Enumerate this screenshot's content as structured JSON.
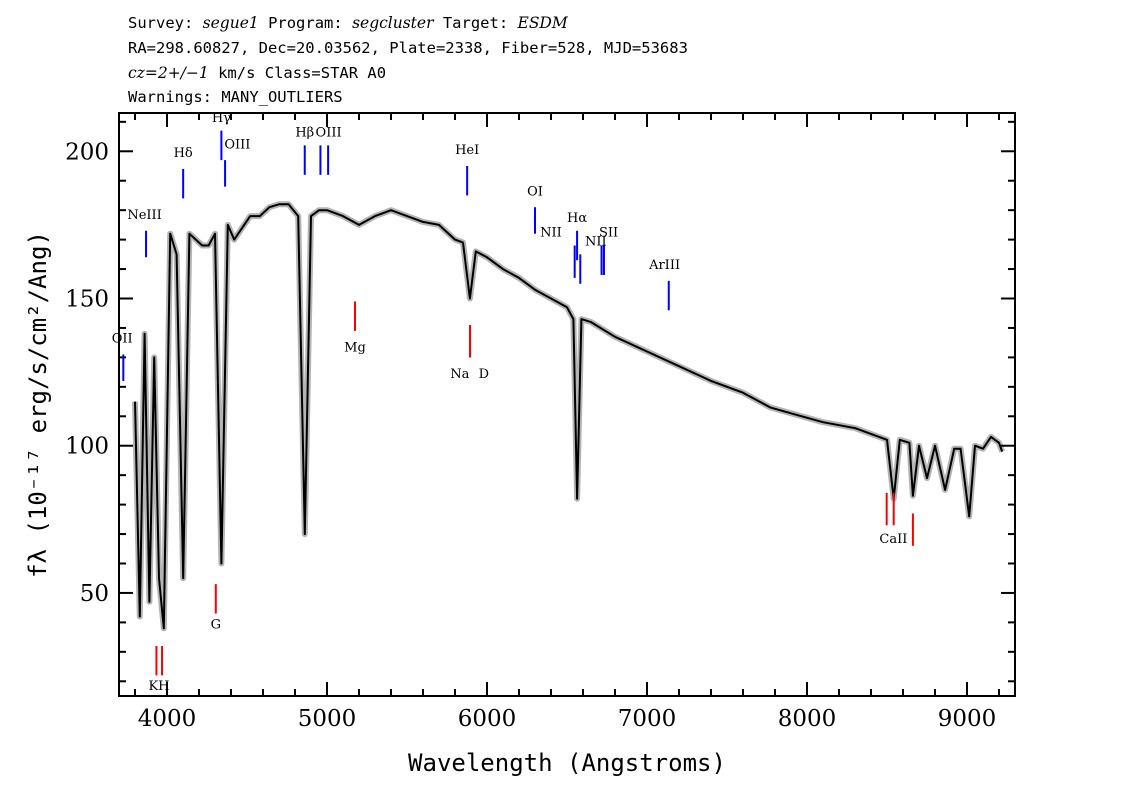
{
  "header": {
    "line1": [
      {
        "t": "Survey: ",
        "i": false
      },
      {
        "t": "segue1",
        "i": true
      },
      {
        "t": " Program: ",
        "i": false
      },
      {
        "t": "segcluster",
        "i": true
      },
      {
        "t": " Target: ",
        "i": false
      },
      {
        "t": "ESDM",
        "i": true
      }
    ],
    "line2": "RA=298.60827, Dec=20.03562, Plate=2338, Fiber=528, MJD=53683",
    "line3": [
      {
        "t": "cz=2+/−1",
        "i": true
      },
      {
        "t": " km/s Class=STAR A0",
        "i": false
      }
    ],
    "line4": "Warnings: MANY_OUTLIERS"
  },
  "chart_data": {
    "type": "line",
    "xlabel": "Wavelength (Angstroms)",
    "ylabel": "fλ (10⁻¹⁷ erg/s/cm²/Ang)",
    "xlim": [
      3700,
      9300
    ],
    "ylim": [
      15,
      213
    ],
    "x_ticks": [
      4000,
      5000,
      6000,
      7000,
      8000,
      9000
    ],
    "y_ticks": [
      50,
      100,
      150,
      200
    ],
    "grid": false,
    "series": [
      {
        "color": "#000000",
        "noise_color": "#b4b4b4",
        "x": [
          3800,
          3830,
          3860,
          3890,
          3920,
          3950,
          3980,
          4020,
          4060,
          4101,
          4140,
          4180,
          4220,
          4260,
          4300,
          4340,
          4380,
          4420,
          4470,
          4520,
          4580,
          4640,
          4700,
          4760,
          4820,
          4861,
          4900,
          4950,
          5000,
          5100,
          5200,
          5300,
          5400,
          5500,
          5600,
          5700,
          5800,
          5850,
          5893,
          5930,
          6000,
          6100,
          6200,
          6300,
          6400,
          6500,
          6540,
          6563,
          6590,
          6650,
          6800,
          7000,
          7200,
          7400,
          7600,
          7770,
          7900,
          8100,
          8300,
          8400,
          8500,
          8542,
          8580,
          8640,
          8662,
          8700,
          8750,
          8800,
          8863,
          8920,
          8960,
          9014,
          9050,
          9100,
          9150,
          9200,
          9220
        ],
        "y": [
          115,
          42,
          138,
          47,
          130,
          55,
          38,
          172,
          165,
          55,
          172,
          170,
          168,
          168,
          172,
          60,
          175,
          170,
          174,
          178,
          178,
          181,
          182,
          182,
          178,
          70,
          178,
          180,
          180,
          178,
          175,
          178,
          180,
          178,
          176,
          175,
          170,
          169,
          150,
          166,
          164,
          160,
          157,
          153,
          150,
          147,
          143,
          82,
          143,
          142,
          137,
          132,
          127,
          122,
          118,
          113,
          111,
          108,
          106,
          104,
          102,
          82,
          102,
          101,
          83,
          100,
          89,
          100,
          85,
          99,
          99,
          76,
          100,
          99,
          103,
          101,
          98
        ]
      }
    ],
    "emission_lines": [
      {
        "label": "OII",
        "x": 3727,
        "y_bottom": 122,
        "y_top": 131,
        "color": "#0000ff"
      },
      {
        "label": "NeIII",
        "x": 3869,
        "y_bottom": 164,
        "y_top": 173,
        "color": "#0000ff"
      },
      {
        "label": "Hδ",
        "x": 4101,
        "y_bottom": 184,
        "y_top": 194,
        "color": "#0000ff"
      },
      {
        "label": "Hγ",
        "x": 4340,
        "y_bottom": 197,
        "y_top": 207,
        "color": "#0000ff"
      },
      {
        "label": "OIII",
        "x": 4363,
        "y_bottom": 188,
        "y_top": 197,
        "color": "#0000ff"
      },
      {
        "label": "Hβ",
        "x": 4861,
        "y_bottom": 192,
        "y_top": 202,
        "color": "#0000ff"
      },
      {
        "label": "OIII",
        "x": 4959,
        "y_bottom": 192,
        "y_top": 202,
        "color": "#0000ff"
      },
      {
        "label": "OIII",
        "x": 5007,
        "y_bottom": 192,
        "y_top": 202,
        "color": "#0000ff"
      },
      {
        "label": "HeI",
        "x": 5876,
        "y_bottom": 185,
        "y_top": 195,
        "color": "#0000ff"
      },
      {
        "label": "OI",
        "x": 6300,
        "y_bottom": 172,
        "y_top": 181,
        "color": "#0000ff"
      },
      {
        "label": "NII",
        "x": 6548,
        "y_bottom": 157,
        "y_top": 168,
        "color": "#0000ff"
      },
      {
        "label": "Hα",
        "x": 6563,
        "y_bottom": 163,
        "y_top": 173,
        "color": "#0000ff"
      },
      {
        "label": "NII",
        "x": 6583,
        "y_bottom": 155,
        "y_top": 165,
        "color": "#0000ff"
      },
      {
        "label": "SII",
        "x": 6716,
        "y_bottom": 158,
        "y_top": 168,
        "color": "#0000ff"
      },
      {
        "label": "SII",
        "x": 6731,
        "y_bottom": 158,
        "y_top": 168,
        "color": "#0000ff"
      },
      {
        "label": "ArIII",
        "x": 7136,
        "y_bottom": 146,
        "y_top": 156,
        "color": "#0000ff"
      }
    ],
    "absorption_lines": [
      {
        "label": "K",
        "x": 3934,
        "y_bottom": 22,
        "y_top": 32,
        "color": "#ff0000"
      },
      {
        "label": "H",
        "x": 3969,
        "y_bottom": 22,
        "y_top": 32,
        "color": "#ff0000"
      },
      {
        "label": "G",
        "x": 4305,
        "y_bottom": 43,
        "y_top": 53,
        "color": "#ff0000"
      },
      {
        "label": "Mg",
        "x": 5175,
        "y_bottom": 139,
        "y_top": 149,
        "color": "#ff0000"
      },
      {
        "label": "Na",
        "x": 5894,
        "y_bottom": 130,
        "y_top": 141,
        "color": "#ff0000"
      },
      {
        "label": "D",
        "x": 5894,
        "y_bottom": 130,
        "y_top": 141,
        "color": "#ff0000"
      },
      {
        "label": "CaII",
        "x": 8498,
        "y_bottom": 73,
        "y_top": 84,
        "color": "#ff0000"
      },
      {
        "label": "CaII",
        "x": 8542,
        "y_bottom": 73,
        "y_top": 84,
        "color": "#ff0000"
      },
      {
        "label": "CaII",
        "x": 8662,
        "y_bottom": 66,
        "y_top": 77,
        "color": "#ff0000"
      }
    ],
    "line_labels": [
      {
        "text": "OII",
        "x": 3720,
        "y": 135
      },
      {
        "text": "NeIII",
        "x": 3860,
        "y": 177
      },
      {
        "text": "Hδ",
        "x": 4101,
        "y": 198
      },
      {
        "text": "Hγ",
        "x": 4340,
        "y": 210
      },
      {
        "text": "OIII",
        "x": 4440,
        "y": 201
      },
      {
        "text": "Hβ",
        "x": 4861,
        "y": 205
      },
      {
        "text": "OIII",
        "x": 5010,
        "y": 205
      },
      {
        "text": "HeI",
        "x": 5876,
        "y": 199
      },
      {
        "text": "OI",
        "x": 6300,
        "y": 185
      },
      {
        "text": "Hα",
        "x": 6563,
        "y": 176
      },
      {
        "text": "NII",
        "x": 6400,
        "y": 171
      },
      {
        "text": "NII",
        "x": 6680,
        "y": 168
      },
      {
        "text": "SII",
        "x": 6760,
        "y": 171
      },
      {
        "text": "ArIII",
        "x": 7110,
        "y": 160
      },
      {
        "text": "Mg",
        "x": 5175,
        "y": 132
      },
      {
        "text": "Na",
        "x": 5830,
        "y": 123
      },
      {
        "text": "D",
        "x": 5980,
        "y": 123
      },
      {
        "text": "G",
        "x": 4305,
        "y": 38
      },
      {
        "text": "KH",
        "x": 3950,
        "y": 17
      },
      {
        "text": "CaII",
        "x": 8540,
        "y": 67
      }
    ]
  }
}
